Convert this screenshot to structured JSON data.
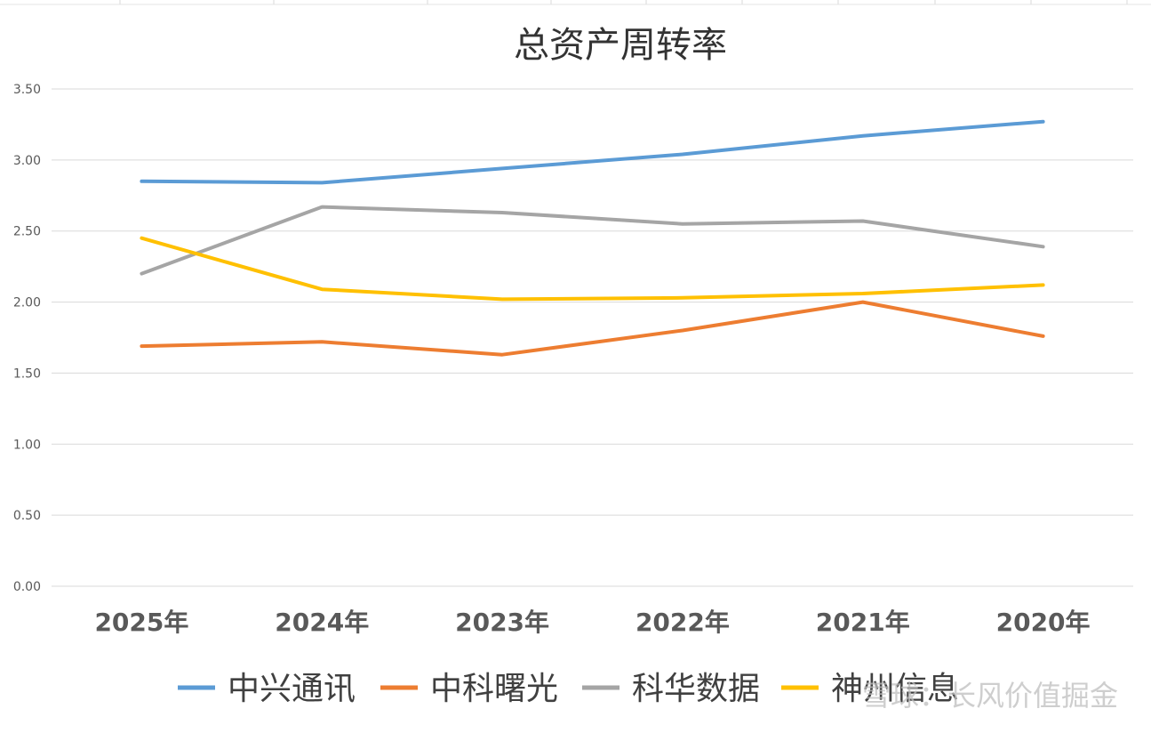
{
  "chart_data": {
    "type": "line",
    "title": "总资产周转率",
    "xlabel": "",
    "ylabel": "",
    "categories": [
      "2025年",
      "2024年",
      "2023年",
      "2022年",
      "2021年",
      "2020年"
    ],
    "yticks": [
      "0.00",
      "0.50",
      "1.00",
      "1.50",
      "2.00",
      "2.50",
      "3.00",
      "3.50"
    ],
    "ylim": [
      0,
      3.5
    ],
    "grid": true,
    "legend_position": "bottom",
    "series": [
      {
        "name": "中兴通讯",
        "color": "#5B9BD5",
        "values": [
          2.85,
          2.84,
          2.94,
          3.04,
          3.17,
          3.27
        ]
      },
      {
        "name": "中科曙光",
        "color": "#ED7D31",
        "values": [
          1.69,
          1.72,
          1.63,
          1.8,
          2.0,
          1.76
        ]
      },
      {
        "name": "科华数据",
        "color": "#A5A5A5",
        "values": [
          2.2,
          2.67,
          2.63,
          2.55,
          2.57,
          2.39
        ]
      },
      {
        "name": "神州信息",
        "color": "#FFC000",
        "values": [
          2.45,
          2.09,
          2.02,
          2.03,
          2.06,
          2.12
        ]
      }
    ]
  },
  "watermark": {
    "text": "雪球：长风价值掘金"
  }
}
